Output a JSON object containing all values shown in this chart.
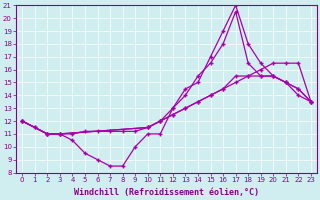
{
  "xlabel": "Windchill (Refroidissement éolien,°C)",
  "x_ticks": [
    0,
    1,
    2,
    3,
    4,
    5,
    6,
    7,
    8,
    9,
    10,
    11,
    12,
    13,
    14,
    15,
    16,
    17,
    18,
    19,
    20,
    21,
    22,
    23
  ],
  "ylim": [
    8,
    21
  ],
  "xlim": [
    -0.5,
    23.5
  ],
  "y_ticks": [
    8,
    9,
    10,
    11,
    12,
    13,
    14,
    15,
    16,
    17,
    18,
    19,
    20,
    21
  ],
  "bg_color": "#d0eef0",
  "line_color": "#aa00aa",
  "grid_color": "#ffffff",
  "line1_x": [
    0,
    1,
    2,
    3,
    4,
    5,
    6,
    7,
    8,
    9,
    10,
    11,
    12,
    13,
    14,
    15,
    16,
    17,
    18,
    19,
    20,
    21,
    22,
    23
  ],
  "line1_y": [
    12.0,
    11.5,
    11.0,
    11.0,
    10.5,
    9.5,
    9.0,
    8.5,
    8.5,
    10.0,
    11.0,
    11.0,
    13.0,
    14.5,
    15.0,
    17.0,
    19.0,
    21.0,
    18.0,
    16.5,
    15.5,
    15.0,
    14.5,
    13.5
  ],
  "line2_x": [
    0,
    1,
    2,
    3,
    4,
    5,
    6,
    7,
    8,
    9,
    10,
    11,
    12,
    13,
    14,
    15,
    16,
    17,
    18,
    19,
    20,
    21,
    22,
    23
  ],
  "line2_y": [
    12.0,
    11.5,
    11.0,
    11.0,
    11.0,
    11.2,
    11.2,
    11.2,
    11.2,
    11.2,
    11.5,
    12.0,
    13.0,
    14.0,
    15.5,
    16.5,
    18.0,
    20.5,
    16.5,
    15.5,
    15.5,
    15.0,
    14.5,
    13.5
  ],
  "line3_x": [
    0,
    2,
    3,
    10,
    11,
    12,
    13,
    14,
    15,
    16,
    17,
    18,
    19,
    20,
    21,
    22,
    23
  ],
  "line3_y": [
    12.0,
    11.0,
    11.0,
    11.5,
    12.0,
    12.5,
    13.0,
    13.5,
    14.0,
    14.5,
    15.5,
    15.5,
    15.5,
    15.5,
    15.0,
    14.0,
    13.5
  ],
  "line4_x": [
    0,
    2,
    3,
    10,
    11,
    12,
    13,
    14,
    15,
    16,
    17,
    18,
    19,
    20,
    21,
    22,
    23
  ],
  "line4_y": [
    12.0,
    11.0,
    11.0,
    11.5,
    12.0,
    12.5,
    13.0,
    13.5,
    14.0,
    14.5,
    15.0,
    15.5,
    16.0,
    16.5,
    16.5,
    16.5,
    13.5
  ],
  "xlabel_color": "#880088",
  "tick_color": "#880088",
  "spine_color": "#880088",
  "tick_fontsize": 5.0,
  "xlabel_fontsize": 6.0,
  "xlabel_fontweight": "bold"
}
